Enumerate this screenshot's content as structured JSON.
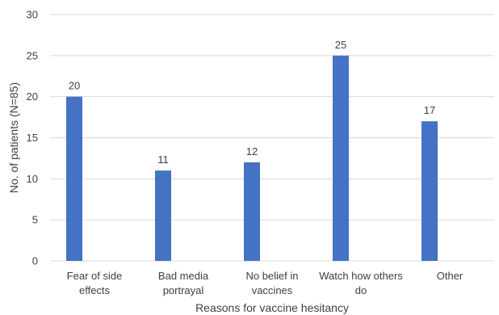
{
  "chart_data": {
    "type": "bar",
    "categories": [
      [
        "Fear of side",
        "effects"
      ],
      [
        "Bad media",
        "portrayal"
      ],
      [
        "No belief in",
        "vaccines"
      ],
      [
        "Watch how others",
        "do"
      ],
      [
        "Other"
      ]
    ],
    "values": [
      20,
      11,
      12,
      25,
      17
    ],
    "title": "",
    "xlabel": "Reasons for vaccine hesitancy",
    "ylabel": "No. of patients (N=85)",
    "ylim": [
      0,
      30
    ],
    "yticks": [
      0,
      5,
      10,
      15,
      20,
      25,
      30
    ],
    "grid": true,
    "bar_color": "#4472c4",
    "legend": "none"
  }
}
